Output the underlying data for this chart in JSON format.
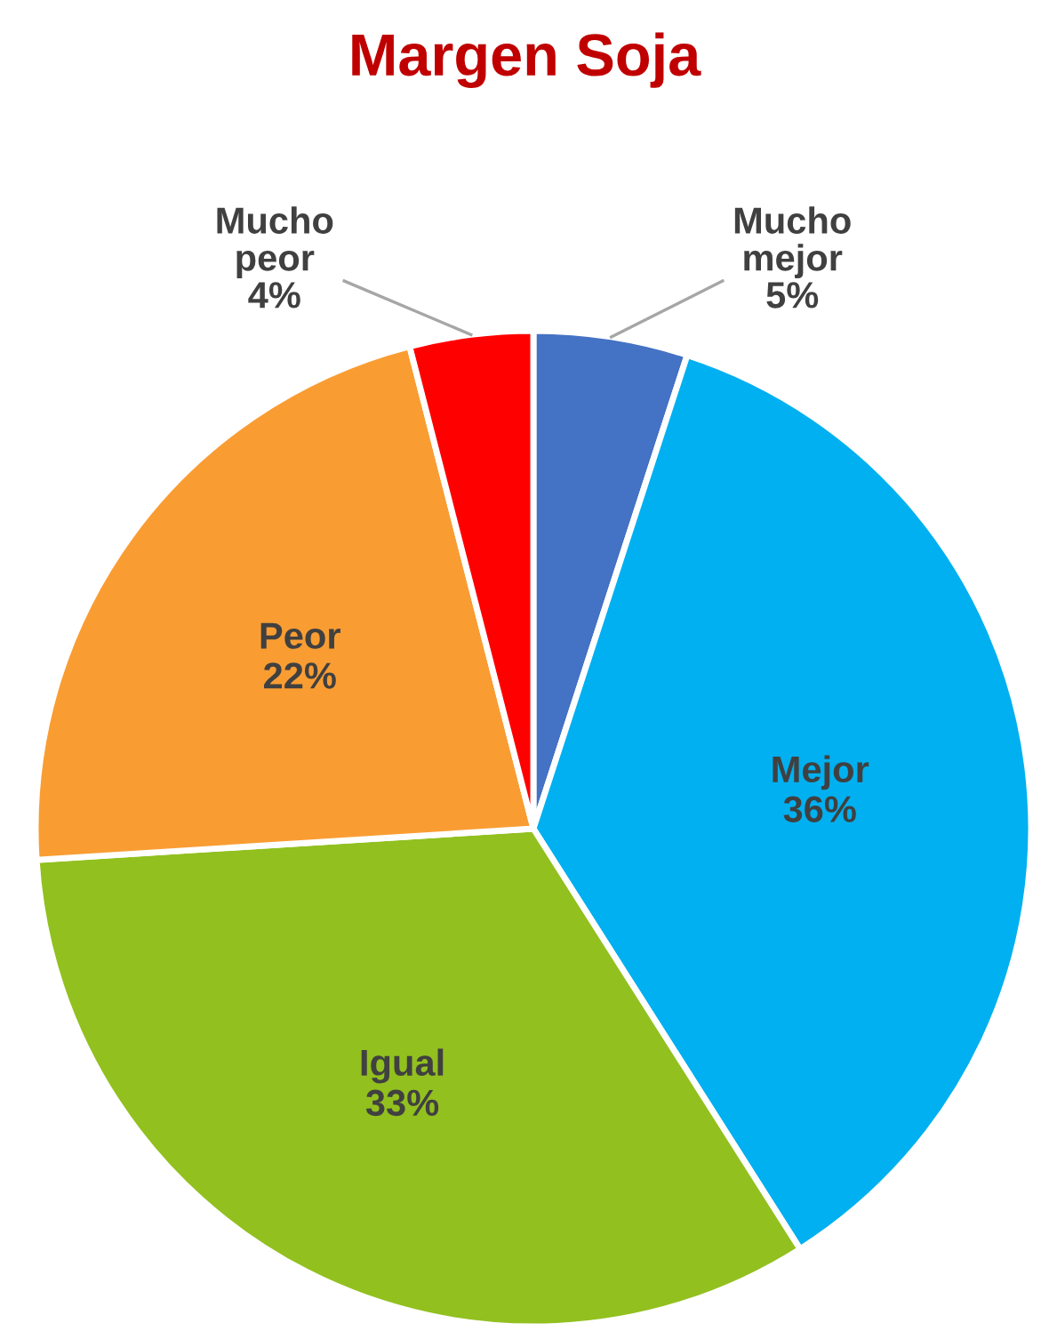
{
  "chart_data": {
    "type": "pie",
    "title": "Margen Soja",
    "categories": [
      "Mucho mejor",
      "Mejor",
      "Igual",
      "Peor",
      "Mucho peor"
    ],
    "values": [
      5,
      36,
      33,
      22,
      4
    ],
    "colors": [
      "#4472c4",
      "#00b0f0",
      "#92c01f",
      "#f99d33",
      "#ff0000"
    ],
    "value_labels": [
      "5%",
      "36%",
      "33%",
      "22%",
      "4%"
    ],
    "legend": false
  }
}
